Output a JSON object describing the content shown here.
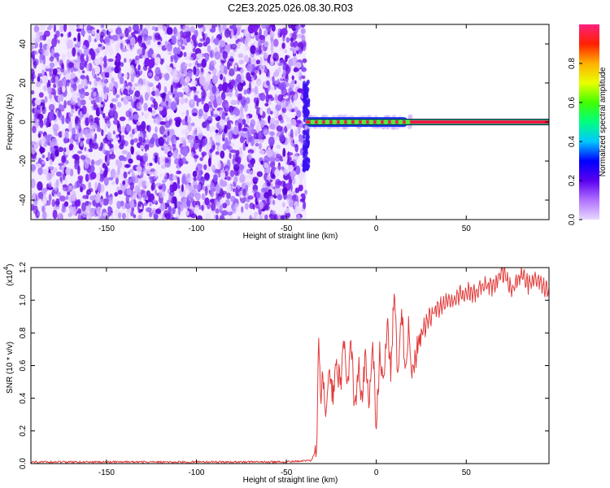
{
  "title": "C2E3.2025.026.08.30.R03",
  "colors": {
    "snr_line": "#e23b3b",
    "noise_purple": "#7a1cf0",
    "signal_core": "#ff1744",
    "axis": "#000000",
    "colorbar_stops": [
      "#e8d8ff",
      "#b070ff",
      "#5a00f0",
      "#0000ff",
      "#00c8ff",
      "#00ff80",
      "#40ff00",
      "#e8ff00",
      "#ffb000",
      "#ff2000",
      "#ff2080"
    ]
  },
  "chart_data": [
    {
      "type": "heatmap",
      "title": "C2E3.2025.026.08.30.R03",
      "xlabel": "Height of straight line (km)",
      "ylabel": "Frequency (Hz)",
      "xlim": [
        -192,
        96
      ],
      "ylim": [
        -50,
        50
      ],
      "xticks": [
        -150,
        -100,
        -50,
        0,
        50
      ],
      "yticks": [
        -40,
        -20,
        0,
        20,
        40
      ],
      "noise_region_x": [
        -192,
        -39
      ],
      "signal_region_x": [
        -39,
        96
      ],
      "signal_frequency": 0,
      "colorbar": {
        "label": "Normalized spectral amplitude",
        "range": [
          0,
          1
        ],
        "ticks": [
          "0.0",
          "0.2",
          "0.4",
          "0.6",
          "0.8"
        ],
        "scale": "rainbow"
      },
      "grid": false
    },
    {
      "type": "line",
      "xlabel": "Height of straight line (km)",
      "ylabel": "SNR (10 * v/v)",
      "ylabel_multiplier": "(x10",
      "ylabel_exponent": "4",
      "ylabel_multiplier_close": ")",
      "xlim": [
        -192,
        96
      ],
      "ylim": [
        0,
        1.2
      ],
      "xticks": [
        -150,
        -100,
        -50,
        0,
        50
      ],
      "yticks": [
        "0.0",
        "0.2",
        "0.4",
        "0.6",
        "0.8",
        "1.0",
        "1.2"
      ],
      "series": [
        {
          "x": [
            -192,
            -150,
            -100,
            -50,
            -36,
            -33,
            -32,
            -31,
            -30,
            -28,
            -26,
            -24,
            -22,
            -20,
            -18,
            -16,
            -14,
            -12,
            -10,
            -8,
            -6,
            -4,
            -2,
            0,
            2,
            4,
            6,
            8,
            10,
            12,
            14,
            16,
            18,
            20,
            25,
            30,
            35,
            40,
            45,
            50,
            55,
            60,
            65,
            70,
            75,
            80,
            85,
            90,
            96
          ],
          "values": [
            0.01,
            0.01,
            0.01,
            0.01,
            0.02,
            0.1,
            0.82,
            0.4,
            0.55,
            0.36,
            0.5,
            0.44,
            0.62,
            0.45,
            0.7,
            0.5,
            0.77,
            0.32,
            0.6,
            0.42,
            0.65,
            0.4,
            0.72,
            0.22,
            0.7,
            0.5,
            0.9,
            0.56,
            1.08,
            0.5,
            0.95,
            0.6,
            0.84,
            0.58,
            0.8,
            0.9,
            0.96,
            1.0,
            1.02,
            1.05,
            1.04,
            1.1,
            1.08,
            1.18,
            1.06,
            1.15,
            1.1,
            1.13,
            1.05
          ]
        }
      ],
      "grid": false
    }
  ]
}
